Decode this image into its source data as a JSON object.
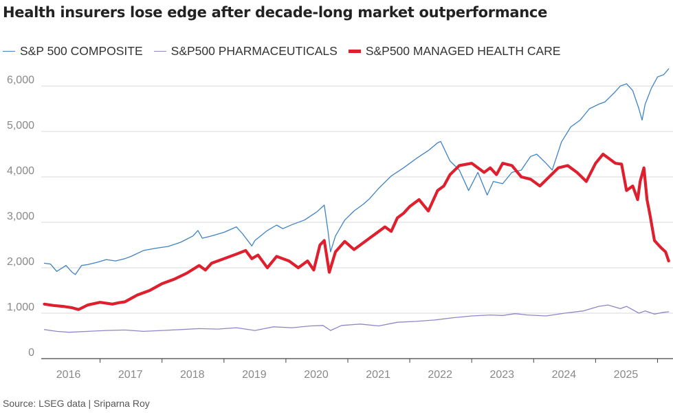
{
  "chart_data": {
    "type": "line",
    "title": "Health insurers lose edge after decade-long market outperformance",
    "source": "Source: LSEG data | Sriparna Roy",
    "ylim": [
      0,
      6500
    ],
    "yticks": [
      0,
      1000,
      2000,
      3000,
      4000,
      5000,
      6000
    ],
    "ytick_labels": [
      "0",
      "1,000",
      "2,000",
      "3,000",
      "4,000",
      "5,000",
      "6,000"
    ],
    "xlim": [
      2015.55,
      2025.75
    ],
    "xticks": [
      2016,
      2017,
      2018,
      2019,
      2020,
      2021,
      2022,
      2023,
      2024,
      2025
    ],
    "xtick_labels": [
      "2016",
      "2017",
      "2018",
      "2019",
      "2020",
      "2021",
      "2022",
      "2023",
      "2024",
      "2025"
    ],
    "grid": true,
    "colors": {
      "composite": "#3d82c4",
      "pharma": "#8f86c8",
      "managed": "#dd1f2e",
      "grid": "#d9d9d9",
      "axis": "#444444"
    },
    "series": [
      {
        "name": "S&P 500 COMPOSITE",
        "key": "composite",
        "x": [
          2015.6,
          2015.7,
          2015.8,
          2015.95,
          2016.05,
          2016.1,
          2016.2,
          2016.3,
          2016.45,
          2016.6,
          2016.75,
          2016.9,
          2017.0,
          2017.2,
          2017.4,
          2017.6,
          2017.8,
          2018.0,
          2018.08,
          2018.15,
          2018.3,
          2018.5,
          2018.7,
          2018.8,
          2018.95,
          2019.0,
          2019.2,
          2019.35,
          2019.45,
          2019.6,
          2019.8,
          2020.0,
          2020.12,
          2020.18,
          2020.22,
          2020.3,
          2020.45,
          2020.6,
          2020.75,
          2020.85,
          2021.0,
          2021.2,
          2021.4,
          2021.6,
          2021.8,
          2021.95,
          2022.0,
          2022.15,
          2022.3,
          2022.45,
          2022.6,
          2022.75,
          2022.85,
          2023.0,
          2023.15,
          2023.3,
          2023.45,
          2023.55,
          2023.7,
          2023.8,
          2023.95,
          2024.1,
          2024.25,
          2024.4,
          2024.55,
          2024.65,
          2024.8,
          2024.9,
          2025.0,
          2025.1,
          2025.2,
          2025.25,
          2025.3,
          2025.4,
          2025.5,
          2025.6,
          2025.68
        ],
        "values": [
          2100,
          2080,
          1920,
          2050,
          1900,
          1850,
          2050,
          2070,
          2120,
          2180,
          2150,
          2200,
          2250,
          2380,
          2430,
          2470,
          2560,
          2700,
          2820,
          2650,
          2700,
          2780,
          2900,
          2750,
          2480,
          2600,
          2820,
          2940,
          2860,
          2950,
          3050,
          3230,
          3380,
          2800,
          2350,
          2700,
          3050,
          3250,
          3400,
          3520,
          3750,
          4020,
          4200,
          4400,
          4580,
          4750,
          4780,
          4350,
          4150,
          3700,
          4100,
          3600,
          3900,
          3850,
          4100,
          4150,
          4450,
          4500,
          4300,
          4150,
          4770,
          5100,
          5250,
          5500,
          5600,
          5650,
          5850,
          6000,
          6050,
          5900,
          5500,
          5250,
          5600,
          5950,
          6200,
          6250,
          6380
        ]
      },
      {
        "name": "S&P500 PHARMACEUTICALS",
        "key": "pharma",
        "x": [
          2015.6,
          2015.8,
          2016.0,
          2016.3,
          2016.6,
          2016.9,
          2017.2,
          2017.5,
          2017.8,
          2018.1,
          2018.4,
          2018.7,
          2019.0,
          2019.3,
          2019.6,
          2019.9,
          2020.1,
          2020.22,
          2020.4,
          2020.7,
          2021.0,
          2021.3,
          2021.6,
          2021.9,
          2022.2,
          2022.5,
          2022.8,
          2023.0,
          2023.2,
          2023.4,
          2023.7,
          2024.0,
          2024.3,
          2024.55,
          2024.7,
          2024.9,
          2025.0,
          2025.2,
          2025.3,
          2025.45,
          2025.6,
          2025.68
        ],
        "values": [
          640,
          600,
          580,
          600,
          620,
          630,
          600,
          620,
          640,
          660,
          650,
          680,
          620,
          700,
          680,
          720,
          730,
          620,
          730,
          760,
          720,
          800,
          820,
          850,
          900,
          940,
          960,
          950,
          990,
          960,
          940,
          1000,
          1050,
          1150,
          1180,
          1100,
          1150,
          1000,
          1050,
          980,
          1020,
          1030
        ]
      },
      {
        "name": "S&P500 MANAGED HEALTH CARE",
        "key": "managed",
        "x": [
          2015.6,
          2015.75,
          2015.9,
          2016.05,
          2016.15,
          2016.3,
          2016.5,
          2016.7,
          2016.8,
          2016.9,
          2017.1,
          2017.3,
          2017.5,
          2017.7,
          2017.9,
          2018.1,
          2018.2,
          2018.3,
          2018.5,
          2018.7,
          2018.85,
          2018.95,
          2019.05,
          2019.2,
          2019.35,
          2019.45,
          2019.55,
          2019.7,
          2019.85,
          2019.95,
          2020.05,
          2020.12,
          2020.2,
          2020.3,
          2020.45,
          2020.6,
          2020.75,
          2020.85,
          2020.95,
          2021.1,
          2021.2,
          2021.3,
          2021.4,
          2021.5,
          2021.65,
          2021.8,
          2021.95,
          2022.05,
          2022.15,
          2022.3,
          2022.5,
          2022.7,
          2022.8,
          2022.9,
          2023.0,
          2023.15,
          2023.3,
          2023.45,
          2023.6,
          2023.75,
          2023.9,
          2024.05,
          2024.2,
          2024.35,
          2024.5,
          2024.62,
          2024.72,
          2024.82,
          2024.92,
          2025.0,
          2025.1,
          2025.18,
          2025.22,
          2025.28,
          2025.33,
          2025.38,
          2025.45,
          2025.55,
          2025.63,
          2025.68
        ],
        "values": [
          1200,
          1170,
          1150,
          1120,
          1080,
          1180,
          1240,
          1200,
          1230,
          1250,
          1400,
          1500,
          1650,
          1750,
          1880,
          2050,
          1950,
          2100,
          2200,
          2300,
          2380,
          2200,
          2280,
          2000,
          2250,
          2200,
          2150,
          2000,
          2150,
          1950,
          2500,
          2600,
          1900,
          2350,
          2580,
          2400,
          2550,
          2650,
          2750,
          2900,
          2800,
          3100,
          3200,
          3350,
          3500,
          3250,
          3700,
          3800,
          4050,
          4250,
          4300,
          4100,
          4200,
          4050,
          4300,
          4250,
          4000,
          3950,
          3800,
          4000,
          4200,
          4250,
          4100,
          3900,
          4300,
          4500,
          4400,
          4300,
          4280,
          3700,
          3800,
          3500,
          3900,
          4200,
          3500,
          3150,
          2600,
          2450,
          2350,
          2150
        ]
      }
    ]
  }
}
